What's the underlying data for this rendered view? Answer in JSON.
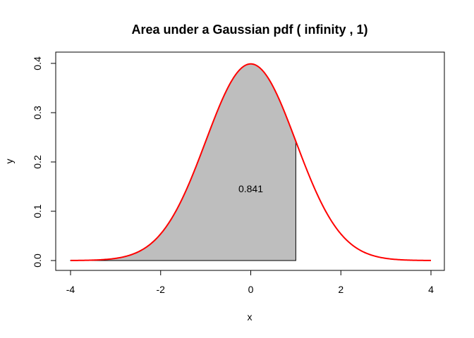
{
  "chart_data": {
    "type": "area",
    "title": "Area under a Gaussian pdf ( infinity , 1)",
    "xlabel": "x",
    "ylabel": "y",
    "xlim": [
      -4,
      4
    ],
    "ylim": [
      0,
      0.4
    ],
    "x_ticks": [
      "-4",
      "-2",
      "0",
      "2",
      "4"
    ],
    "y_ticks": [
      "0.0",
      "0.1",
      "0.2",
      "0.3",
      "0.4"
    ],
    "curve": {
      "mean": 0,
      "sd": 1,
      "x_range": [
        -4,
        4
      ],
      "color": "#ff0000"
    },
    "shaded_region": {
      "x_range": [
        -4,
        1
      ],
      "fill_color": "#bebebe",
      "border_color": "#000000",
      "value": 0.841
    },
    "annotation": "0.841",
    "grid": false
  }
}
